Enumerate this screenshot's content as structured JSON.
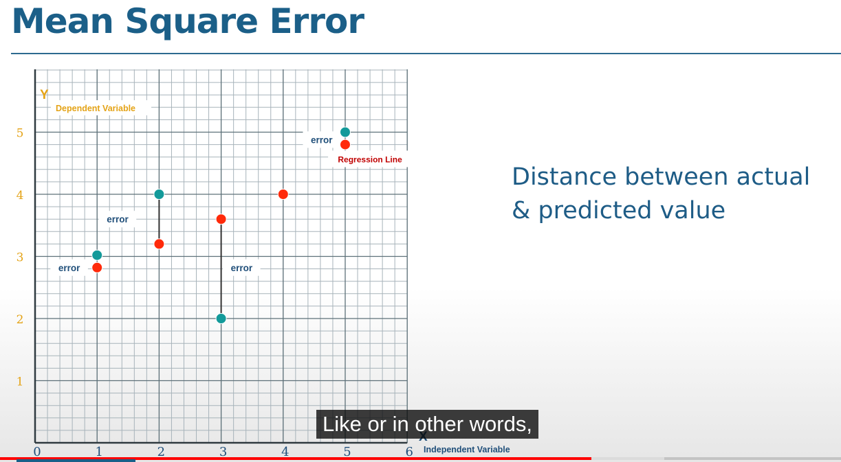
{
  "slide": {
    "title": "Mean Square Error",
    "description_line1": "Distance between actual",
    "description_line2": "& predicted value"
  },
  "caption": "Like or in other words,",
  "player": {
    "progress": 0.703,
    "buffered": 0.79
  },
  "colors": {
    "title": "#1b5f88",
    "actual_point": "#139a9a",
    "predicted_point": "#ff2a0a",
    "axis_label": "#e4a317",
    "annotation": "#1f4e79",
    "regression_label": "#c00000",
    "grid_minor": "#a7b3ba",
    "grid_major": "#5d7078"
  },
  "chart_data": {
    "type": "scatter",
    "xlabel": "Independent Variable",
    "ylabel": "Dependent Variable",
    "x_axis_letter": "X",
    "y_axis_letter": "Y",
    "xlim": [
      0,
      6
    ],
    "ylim": [
      0,
      6
    ],
    "x_ticks": [
      0,
      1,
      2,
      3,
      4,
      5,
      6
    ],
    "y_ticks": [
      1,
      2,
      3,
      4,
      5
    ],
    "grid": true,
    "series": [
      {
        "role": "actual",
        "points": [
          [
            1,
            3.02
          ],
          [
            2,
            4.0
          ],
          [
            3,
            2.0
          ],
          [
            5,
            5.0
          ]
        ]
      },
      {
        "role": "predicted",
        "points": [
          [
            1,
            2.82
          ],
          [
            2,
            3.2
          ],
          [
            3,
            3.6
          ],
          [
            4,
            4.0
          ],
          [
            5,
            4.8
          ]
        ]
      }
    ],
    "error_segments": [
      {
        "x": 2,
        "y1": 3.2,
        "y2": 4.0
      },
      {
        "x": 3,
        "y1": 2.0,
        "y2": 3.6
      }
    ],
    "annotations": [
      {
        "text": "error",
        "x": 0.55,
        "y": 2.82
      },
      {
        "text": "error",
        "x": 1.33,
        "y": 3.6
      },
      {
        "text": "error",
        "x": 3.33,
        "y": 2.82
      },
      {
        "text": "error",
        "x": 4.62,
        "y": 4.88
      },
      {
        "text": "Regression Line",
        "x": 5.4,
        "y": 4.57,
        "kind": "regression"
      }
    ]
  }
}
